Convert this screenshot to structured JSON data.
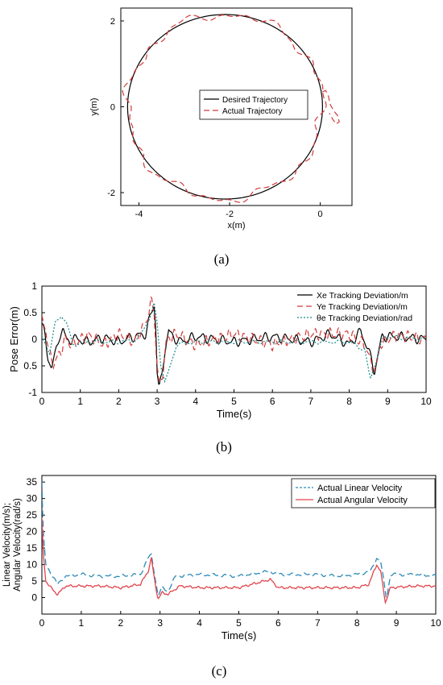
{
  "chart_data": [
    {
      "id": "a",
      "type": "line",
      "caption": "(a)",
      "xlabel": "x(m)",
      "ylabel": "y(m)",
      "xlim": [
        -4.4,
        0.7
      ],
      "ylim": [
        -2.3,
        2.3
      ],
      "xticks": [
        "-4",
        "-2",
        "0"
      ],
      "yticks": [
        "-2",
        "0",
        "2"
      ],
      "legend_position": "center-right",
      "series": [
        {
          "name": "Desired Trajectory",
          "color": "#000000",
          "style": "solid",
          "shape": "circle",
          "center": [
            -2.1,
            0.0
          ],
          "radius": 2.15
        },
        {
          "name": "Actual Trajectory",
          "color": "#d43a3a",
          "style": "dashed",
          "shape": "circle-perturbed",
          "center": [
            -2.1,
            0.0
          ],
          "radius": 2.15,
          "excursion": {
            "x": [
              0.05,
              0.12,
              0.18,
              0.22,
              0.3,
              0.38,
              0.42,
              0.35,
              0.28,
              0.2
            ],
            "y": [
              0.35,
              0.38,
              0.25,
              0.05,
              -0.1,
              -0.2,
              -0.35,
              -0.4,
              -0.3,
              -0.15
            ]
          }
        }
      ]
    },
    {
      "id": "b",
      "type": "line",
      "caption": "(b)",
      "xlabel": "Time(s)",
      "ylabel": "Pose Error(m)",
      "xlim": [
        0,
        10
      ],
      "ylim": [
        -1,
        1
      ],
      "xticks": [
        "0",
        "1",
        "2",
        "3",
        "4",
        "5",
        "6",
        "7",
        "8",
        "9",
        "10"
      ],
      "yticks": [
        "1",
        "0.5",
        "0",
        "0.5",
        "-1"
      ],
      "legend_position": "top-right",
      "series": [
        {
          "name": "Xe Tracking Deviation/m",
          "color": "#000000",
          "style": "solid",
          "key": [
            [
              0,
              0.3
            ],
            [
              0.08,
              0.05
            ],
            [
              0.15,
              -0.35
            ],
            [
              0.25,
              -0.5
            ],
            [
              0.35,
              -0.3
            ],
            [
              0.45,
              0.05
            ],
            [
              0.55,
              0.2
            ],
            [
              0.65,
              -0.05
            ],
            [
              0.8,
              0.02
            ],
            [
              1.2,
              -0.05
            ],
            [
              1.6,
              0.03
            ],
            [
              2.0,
              -0.05
            ],
            [
              2.4,
              0.05
            ],
            [
              2.7,
              0.1
            ],
            [
              2.85,
              0.5
            ],
            [
              2.92,
              0.65
            ],
            [
              2.97,
              0.2
            ],
            [
              3.0,
              -0.6
            ],
            [
              3.05,
              -0.95
            ],
            [
              3.12,
              -0.7
            ],
            [
              3.2,
              -0.2
            ],
            [
              3.3,
              0.15
            ],
            [
              3.4,
              0.05
            ],
            [
              3.6,
              -0.05
            ],
            [
              4.0,
              0.05
            ],
            [
              5.0,
              -0.05
            ],
            [
              6.0,
              0.05
            ],
            [
              7.0,
              -0.05
            ],
            [
              7.5,
              0.1
            ],
            [
              8.0,
              -0.1
            ],
            [
              8.3,
              0.15
            ],
            [
              8.5,
              -0.2
            ],
            [
              8.65,
              -0.6
            ],
            [
              8.75,
              -0.3
            ],
            [
              8.85,
              0.05
            ],
            [
              9.2,
              0.05
            ],
            [
              10,
              0.0
            ]
          ],
          "osc_amp": 0.1
        },
        {
          "name": "Ye Tracking Deviation/m",
          "color": "#d43a3a",
          "style": "dashed",
          "key": [
            [
              0,
              0.35
            ],
            [
              0.1,
              0.2
            ],
            [
              0.2,
              -0.3
            ],
            [
              0.3,
              -0.45
            ],
            [
              0.45,
              -0.3
            ],
            [
              0.6,
              0.0
            ],
            [
              0.8,
              -0.1
            ],
            [
              1.2,
              0.08
            ],
            [
              1.6,
              -0.1
            ],
            [
              2.0,
              0.1
            ],
            [
              2.4,
              -0.05
            ],
            [
              2.7,
              0.3
            ],
            [
              2.85,
              0.7
            ],
            [
              2.92,
              0.55
            ],
            [
              2.98,
              -0.3
            ],
            [
              3.05,
              -0.9
            ],
            [
              3.15,
              -0.6
            ],
            [
              3.25,
              0.0
            ],
            [
              3.5,
              0.1
            ],
            [
              4.0,
              -0.1
            ],
            [
              5.0,
              0.1
            ],
            [
              6.0,
              -0.1
            ],
            [
              7.0,
              0.1
            ],
            [
              8.0,
              0.1
            ],
            [
              8.4,
              -0.1
            ],
            [
              8.6,
              -0.5
            ],
            [
              8.7,
              -0.6
            ],
            [
              8.8,
              -0.1
            ],
            [
              9.2,
              0.08
            ],
            [
              10,
              0.0
            ]
          ],
          "osc_amp": 0.12
        },
        {
          "name": "θe Tracking Deviation/rad",
          "color": "#1a8a8a",
          "style": "dotted",
          "key": [
            [
              0,
              0.05
            ],
            [
              0.2,
              -0.25
            ],
            [
              0.35,
              0.3
            ],
            [
              0.5,
              0.45
            ],
            [
              0.65,
              0.3
            ],
            [
              0.8,
              -0.1
            ],
            [
              1.2,
              -0.05
            ],
            [
              2.0,
              -0.05
            ],
            [
              2.5,
              0.0
            ],
            [
              2.8,
              0.4
            ],
            [
              2.92,
              0.65
            ],
            [
              3.0,
              0.3
            ],
            [
              3.1,
              -0.5
            ],
            [
              3.2,
              -0.8
            ],
            [
              3.35,
              -0.5
            ],
            [
              3.5,
              -0.1
            ],
            [
              4.0,
              -0.05
            ],
            [
              5.0,
              -0.05
            ],
            [
              6.0,
              -0.05
            ],
            [
              7.0,
              -0.05
            ],
            [
              8.0,
              -0.05
            ],
            [
              8.4,
              -0.2
            ],
            [
              8.55,
              -0.75
            ],
            [
              8.7,
              -0.4
            ],
            [
              8.9,
              0.05
            ],
            [
              10,
              0.0
            ]
          ],
          "osc_amp": 0.04
        }
      ]
    },
    {
      "id": "c",
      "type": "line",
      "caption": "(c)",
      "xlabel": "Time(s)",
      "ylabel": "Linear Velocity(m/s);\nAngular Velocity(rad/s)",
      "xlim": [
        0,
        10
      ],
      "ylim": [
        -5,
        37
      ],
      "xticks": [
        "0",
        "1",
        "2",
        "3",
        "4",
        "5",
        "6",
        "7",
        "8",
        "9",
        "10"
      ],
      "yticks": [
        "35",
        "30",
        "25",
        "20",
        "15",
        "10",
        "5",
        "0"
      ],
      "legend_position": "top-right",
      "series": [
        {
          "name": "Actual Linear Velocity",
          "color": "#2b8ab8",
          "style": "dashed",
          "key": [
            [
              0,
              35
            ],
            [
              0.03,
              20
            ],
            [
              0.1,
              10
            ],
            [
              0.25,
              7
            ],
            [
              0.4,
              4
            ],
            [
              0.6,
              6.5
            ],
            [
              1.0,
              7
            ],
            [
              1.5,
              6.5
            ],
            [
              2.0,
              6.5
            ],
            [
              2.5,
              7
            ],
            [
              2.7,
              12
            ],
            [
              2.78,
              13
            ],
            [
              2.85,
              8
            ],
            [
              2.95,
              0.5
            ],
            [
              3.05,
              3
            ],
            [
              3.2,
              2
            ],
            [
              3.4,
              6.5
            ],
            [
              4.0,
              7
            ],
            [
              5.0,
              6.5
            ],
            [
              5.8,
              8
            ],
            [
              6.0,
              7
            ],
            [
              7.0,
              7
            ],
            [
              7.5,
              6.5
            ],
            [
              8.0,
              7
            ],
            [
              8.35,
              8
            ],
            [
              8.5,
              12
            ],
            [
              8.6,
              11
            ],
            [
              8.75,
              -0.5
            ],
            [
              8.85,
              7
            ],
            [
              9.5,
              7
            ],
            [
              10,
              6.5
            ]
          ],
          "osc_amp": 0.5
        },
        {
          "name": "Actual Angular Velocity",
          "color": "#e0454c",
          "style": "solid",
          "key": [
            [
              0,
              24
            ],
            [
              0.03,
              14
            ],
            [
              0.1,
              5
            ],
            [
              0.3,
              2
            ],
            [
              0.4,
              1
            ],
            [
              0.6,
              3.5
            ],
            [
              1.0,
              3.5
            ],
            [
              1.5,
              3.5
            ],
            [
              2.0,
              3
            ],
            [
              2.5,
              4
            ],
            [
              2.7,
              8
            ],
            [
              2.78,
              12
            ],
            [
              2.85,
              6
            ],
            [
              2.95,
              -0.5
            ],
            [
              3.05,
              1.5
            ],
            [
              3.2,
              1
            ],
            [
              3.5,
              3.5
            ],
            [
              4.0,
              3
            ],
            [
              5.0,
              3
            ],
            [
              5.8,
              5.5
            ],
            [
              6.0,
              3
            ],
            [
              7.0,
              3
            ],
            [
              7.5,
              3
            ],
            [
              8.0,
              3
            ],
            [
              8.3,
              4
            ],
            [
              8.5,
              10
            ],
            [
              8.6,
              8
            ],
            [
              8.72,
              -1.5
            ],
            [
              8.85,
              3
            ],
            [
              9.5,
              3.5
            ],
            [
              10,
              3.5
            ]
          ],
          "osc_amp": 0.4
        }
      ]
    }
  ]
}
